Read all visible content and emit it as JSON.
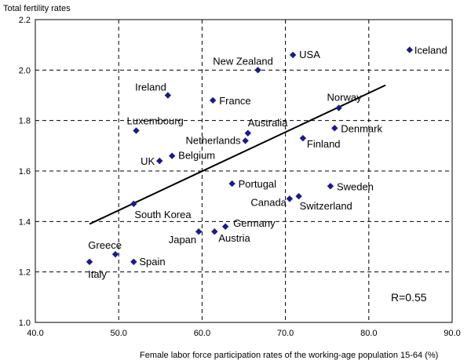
{
  "chart_data": {
    "type": "scatter",
    "title": "",
    "ylabel": "Total fertility rates",
    "xlabel": "Female labor force participation rates of the working-age population 15-64 (%)",
    "xlim": [
      40.0,
      90.0
    ],
    "ylim": [
      1.0,
      2.2
    ],
    "xticks": [
      "40.0",
      "50.0",
      "60.0",
      "70.0",
      "80.0",
      "90.0"
    ],
    "yticks": [
      "1.0",
      "1.2",
      "1.4",
      "1.6",
      "1.8",
      "2.0",
      "2.2"
    ],
    "grid": true,
    "marker_color": "#1a1a8c",
    "points": [
      {
        "label": "Iceland",
        "x": 84.9,
        "y": 2.08,
        "anchor": "start",
        "dx": 6,
        "dy": 5
      },
      {
        "label": "USA",
        "x": 70.9,
        "y": 2.06,
        "anchor": "start",
        "dx": 8,
        "dy": 4
      },
      {
        "label": "New Zealand",
        "x": 66.7,
        "y": 2.0,
        "anchor": "middle",
        "dx": -19,
        "dy": -7
      },
      {
        "label": "Ireland",
        "x": 55.9,
        "y": 1.9,
        "anchor": "end",
        "dx": -2,
        "dy": -6
      },
      {
        "label": "France",
        "x": 61.3,
        "y": 1.88,
        "anchor": "start",
        "dx": 8,
        "dy": 5
      },
      {
        "label": "Norway",
        "x": 76.4,
        "y": 1.85,
        "anchor": "middle",
        "dx": 7,
        "dy": -9
      },
      {
        "label": "Luxembourg",
        "x": 52.1,
        "y": 1.76,
        "anchor": "start",
        "dx": -12,
        "dy": -8
      },
      {
        "label": "Australia",
        "x": 65.5,
        "y": 1.75,
        "anchor": "start",
        "dx": 0,
        "dy": -9
      },
      {
        "label": "Netherlands",
        "x": 65.2,
        "y": 1.72,
        "anchor": "end",
        "dx": -6,
        "dy": 4
      },
      {
        "label": "Denmark",
        "x": 75.9,
        "y": 1.77,
        "anchor": "start",
        "dx": 8,
        "dy": 5
      },
      {
        "label": "Finland",
        "x": 72.1,
        "y": 1.73,
        "anchor": "start",
        "dx": 5,
        "dy": 12
      },
      {
        "label": "Belgium",
        "x": 56.4,
        "y": 1.66,
        "anchor": "start",
        "dx": 8,
        "dy": 4
      },
      {
        "label": "UK",
        "x": 54.9,
        "y": 1.64,
        "anchor": "end",
        "dx": -6,
        "dy": 5
      },
      {
        "label": "Portugal",
        "x": 63.6,
        "y": 1.55,
        "anchor": "start",
        "dx": 8,
        "dy": 5
      },
      {
        "label": "Sweden",
        "x": 75.4,
        "y": 1.54,
        "anchor": "start",
        "dx": 8,
        "dy": 5
      },
      {
        "label": "Canada",
        "x": 70.5,
        "y": 1.49,
        "anchor": "end",
        "dx": -4,
        "dy": 9
      },
      {
        "label": "Switzerland",
        "x": 71.6,
        "y": 1.5,
        "anchor": "start",
        "dx": 1,
        "dy": 17
      },
      {
        "label": "South Korea",
        "x": 51.8,
        "y": 1.47,
        "anchor": "start",
        "dx": 1,
        "dy": 18
      },
      {
        "label": "Germany",
        "x": 62.8,
        "y": 1.38,
        "anchor": "start",
        "dx": 10,
        "dy": 0
      },
      {
        "label": "Japan",
        "x": 59.6,
        "y": 1.36,
        "anchor": "end",
        "dx": -3,
        "dy": 15
      },
      {
        "label": "Austria",
        "x": 61.5,
        "y": 1.36,
        "anchor": "start",
        "dx": 5,
        "dy": 13
      },
      {
        "label": "Greece",
        "x": 49.6,
        "y": 1.27,
        "anchor": "end",
        "dx": 8,
        "dy": -7
      },
      {
        "label": "Spain",
        "x": 51.8,
        "y": 1.24,
        "anchor": "start",
        "dx": 7,
        "dy": 4
      },
      {
        "label": "Italy",
        "x": 46.5,
        "y": 1.24,
        "anchor": "middle",
        "dx": 10,
        "dy": 20
      }
    ],
    "trendline": {
      "x": [
        46.5,
        82.0
      ],
      "y": [
        1.39,
        1.94
      ]
    },
    "annotation": "R=0.55"
  }
}
